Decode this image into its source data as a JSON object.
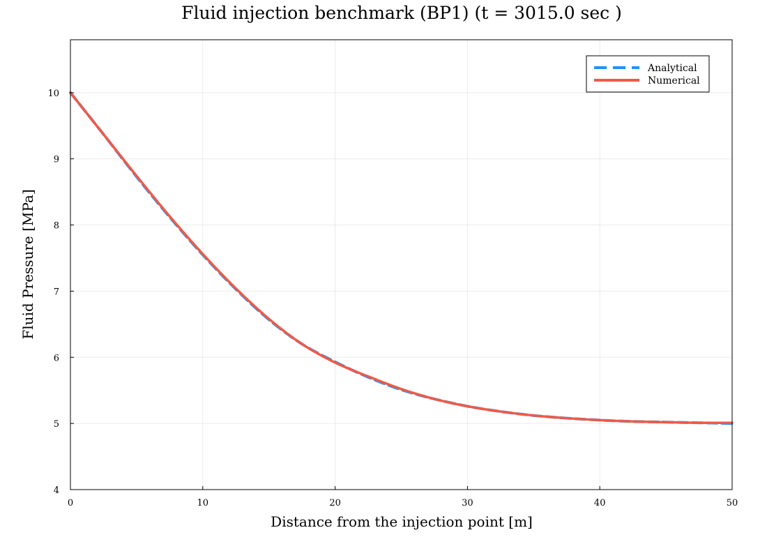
{
  "chart_data": {
    "type": "line",
    "title": "Fluid injection benchmark (BP1) (t = 3015.0 sec )",
    "xlabel": "Distance from the injection point [m]",
    "ylabel": "Fluid Pressure [MPa]",
    "xlim": [
      0,
      50
    ],
    "ylim": [
      4,
      10.8
    ],
    "xticks": [
      0,
      10,
      20,
      30,
      40,
      50
    ],
    "yticks": [
      4,
      5,
      6,
      7,
      8,
      9,
      10
    ],
    "grid": true,
    "legend_position": "top-right",
    "x": [
      0,
      2.5,
      5,
      7.5,
      10,
      12.5,
      15,
      17.5,
      20,
      22.5,
      25,
      27.5,
      30,
      32.5,
      35,
      37.5,
      40,
      42.5,
      45,
      47.5,
      50
    ],
    "series": [
      {
        "name": "Analytical",
        "style": "dashed",
        "color": "#1e90ff",
        "values": [
          10.0,
          9.37,
          8.73,
          8.12,
          7.55,
          7.03,
          6.57,
          6.2,
          5.93,
          5.7,
          5.51,
          5.37,
          5.26,
          5.18,
          5.12,
          5.08,
          5.05,
          5.03,
          5.02,
          5.01,
          5.0
        ]
      },
      {
        "name": "Numerical",
        "style": "solid",
        "color": "#f05a46",
        "values": [
          10.0,
          9.37,
          8.74,
          8.13,
          7.56,
          7.04,
          6.58,
          6.2,
          5.92,
          5.71,
          5.52,
          5.37,
          5.26,
          5.18,
          5.12,
          5.08,
          5.05,
          5.03,
          5.02,
          5.01,
          5.01
        ]
      }
    ]
  }
}
